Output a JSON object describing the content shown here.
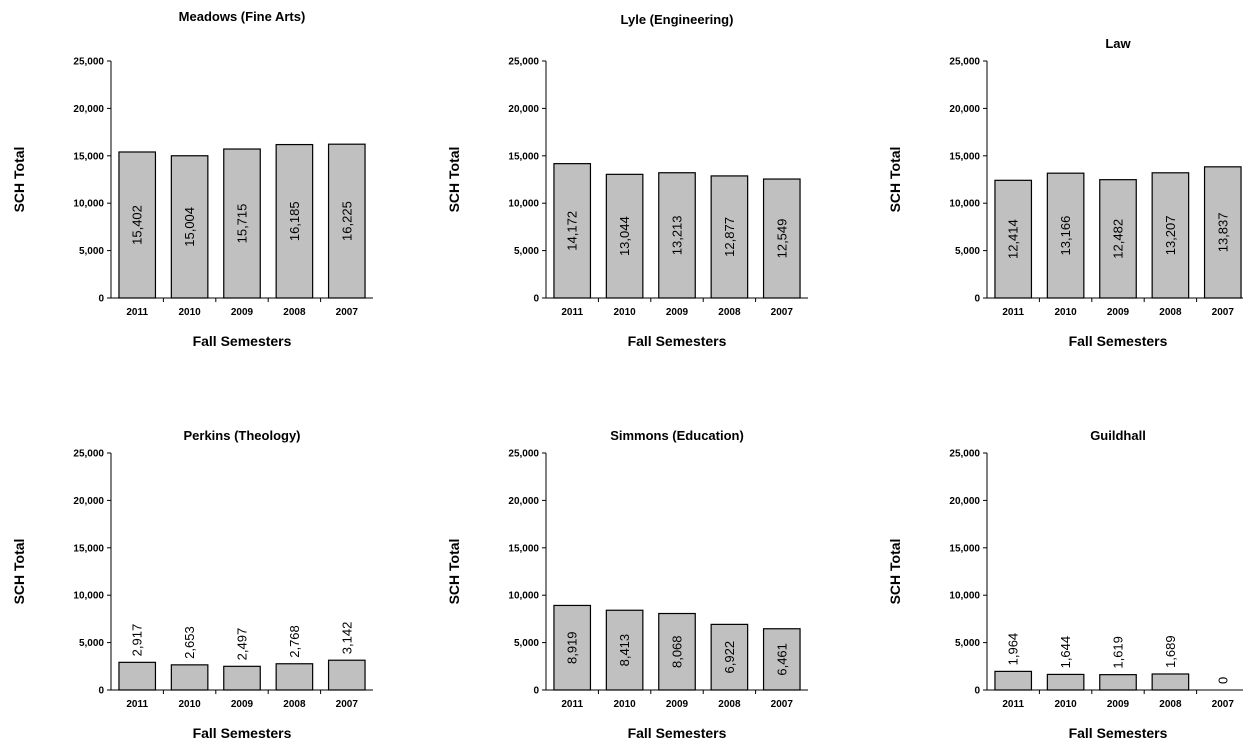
{
  "chart_data": [
    {
      "type": "bar",
      "title": "Meadows (Fine Arts)",
      "xlabel": "Fall Semesters",
      "ylabel": "SCH Total",
      "categories": [
        "2011",
        "2010",
        "2009",
        "2008",
        "2007"
      ],
      "values": [
        15402,
        15004,
        15715,
        16185,
        16225
      ],
      "labels": [
        "15,402",
        "15,004",
        "15,715",
        "16,185",
        "16,225"
      ],
      "ylim": [
        0,
        25000
      ],
      "yticks": [
        "0",
        "5,000",
        "10,000",
        "15,000",
        "20,000",
        "25,000"
      ],
      "grid": false
    },
    {
      "type": "bar",
      "title": "Lyle (Engineering)",
      "xlabel": "Fall Semesters",
      "ylabel": "SCH Total",
      "categories": [
        "2011",
        "2010",
        "2009",
        "2008",
        "2007"
      ],
      "values": [
        14172,
        13044,
        13213,
        12877,
        12549
      ],
      "labels": [
        "14,172",
        "13,044",
        "13,213",
        "12,877",
        "12,549"
      ],
      "ylim": [
        0,
        25000
      ],
      "yticks": [
        "0",
        "5,000",
        "10,000",
        "15,000",
        "20,000",
        "25,000"
      ],
      "grid": false
    },
    {
      "type": "bar",
      "title": "Law",
      "xlabel": "Fall Semesters",
      "ylabel": "SCH Total",
      "categories": [
        "2011",
        "2010",
        "2009",
        "2008",
        "2007"
      ],
      "values": [
        12414,
        13166,
        12482,
        13207,
        13837
      ],
      "labels": [
        "12,414",
        "13,166",
        "12,482",
        "13,207",
        "13,837"
      ],
      "ylim": [
        0,
        25000
      ],
      "yticks": [
        "0",
        "5,000",
        "10,000",
        "15,000",
        "20,000",
        "25,000"
      ],
      "grid": false
    },
    {
      "type": "bar",
      "title": "Perkins (Theology)",
      "xlabel": "Fall Semesters",
      "ylabel": "SCH Total",
      "categories": [
        "2011",
        "2010",
        "2009",
        "2008",
        "2007"
      ],
      "values": [
        2917,
        2653,
        2497,
        2768,
        3142
      ],
      "labels": [
        "2,917",
        "2,653",
        "2,497",
        "2,768",
        "3,142"
      ],
      "ylim": [
        0,
        25000
      ],
      "yticks": [
        "0",
        "5,000",
        "10,000",
        "15,000",
        "20,000",
        "25,000"
      ],
      "grid": false
    },
    {
      "type": "bar",
      "title": "Simmons (Education)",
      "xlabel": "Fall Semesters",
      "ylabel": "SCH Total",
      "categories": [
        "2011",
        "2010",
        "2009",
        "2008",
        "2007"
      ],
      "values": [
        8919,
        8413,
        8068,
        6922,
        6461
      ],
      "labels": [
        "8,919",
        "8,413",
        "8,068",
        "6,922",
        "6,461"
      ],
      "ylim": [
        0,
        25000
      ],
      "yticks": [
        "0",
        "5,000",
        "10,000",
        "15,000",
        "20,000",
        "25,000"
      ],
      "grid": false
    },
    {
      "type": "bar",
      "title": "Guildhall",
      "xlabel": "Fall Semesters",
      "ylabel": "SCH Total",
      "categories": [
        "2011",
        "2010",
        "2009",
        "2008",
        "2007"
      ],
      "values": [
        1964,
        1644,
        1619,
        1689,
        0
      ],
      "labels": [
        "1,964",
        "1,644",
        "1,619",
        "1,689",
        "0"
      ],
      "ylim": [
        0,
        25000
      ],
      "yticks": [
        "0",
        "5,000",
        "10,000",
        "15,000",
        "20,000",
        "25,000"
      ],
      "grid": false
    }
  ],
  "colors": {
    "bar_fill": "#c0c0c0",
    "bar_stroke": "#000000",
    "axis": "#000000"
  }
}
